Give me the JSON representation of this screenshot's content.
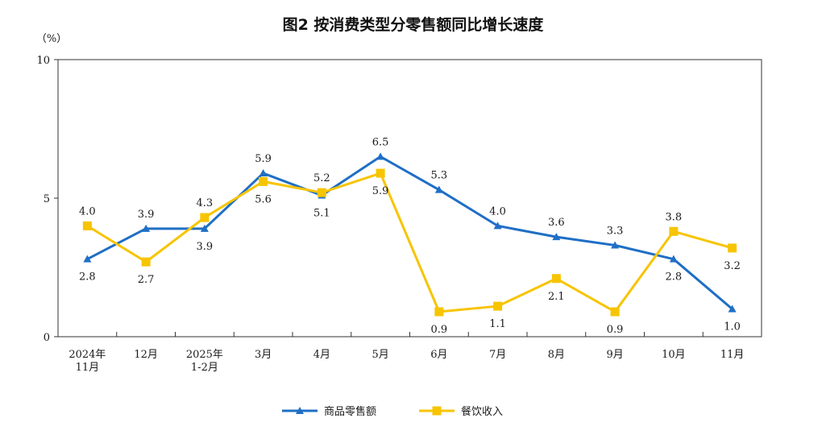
{
  "chart_data": {
    "type": "line",
    "title": "图2  按消费类型分零售额同比增长速度",
    "ylabel": "（%）",
    "xlabel": "",
    "ylim": [
      0,
      10
    ],
    "yticks": [
      "0",
      "5",
      "10"
    ],
    "ytick_values": [
      0,
      5,
      10
    ],
    "categories": [
      [
        "2024年",
        "11月"
      ],
      [
        "12月"
      ],
      [
        "2025年",
        "1-2月"
      ],
      [
        "3月"
      ],
      [
        "4月"
      ],
      [
        "5月"
      ],
      [
        "6月"
      ],
      [
        "7月"
      ],
      [
        "8月"
      ],
      [
        "9月"
      ],
      [
        "10月"
      ],
      [
        "11月"
      ]
    ],
    "series": [
      {
        "name": "商品零售额",
        "color": "#1f6fc5",
        "marker": "triangle",
        "values": [
          2.8,
          3.9,
          3.9,
          5.9,
          5.1,
          6.5,
          5.3,
          4.0,
          3.6,
          3.3,
          2.8,
          1.0
        ],
        "labels": [
          "2.8",
          "3.9",
          "3.9",
          "5.9",
          "5.1",
          "6.5",
          "5.3",
          "4.0",
          "3.6",
          "3.3",
          "2.8",
          "1.0"
        ],
        "label_pos": [
          "below",
          "above",
          "below",
          "above",
          "below",
          "above",
          "above",
          "above",
          "above",
          "above",
          "below",
          "below"
        ]
      },
      {
        "name": "餐饮收入",
        "color": "#f7c400",
        "marker": "square",
        "values": [
          4.0,
          2.7,
          4.3,
          5.6,
          5.2,
          5.9,
          0.9,
          1.1,
          2.1,
          0.9,
          3.8,
          3.2
        ],
        "labels": [
          "4.0",
          "2.7",
          "4.3",
          "5.6",
          "5.2",
          "5.9",
          "0.9",
          "1.1",
          "2.1",
          "0.9",
          "3.8",
          "3.2"
        ],
        "label_pos": [
          "above",
          "below",
          "above",
          "below",
          "above",
          "below",
          "below",
          "below",
          "below",
          "below",
          "above",
          "below"
        ]
      }
    ],
    "legend": "bottom-center",
    "grid": false
  }
}
